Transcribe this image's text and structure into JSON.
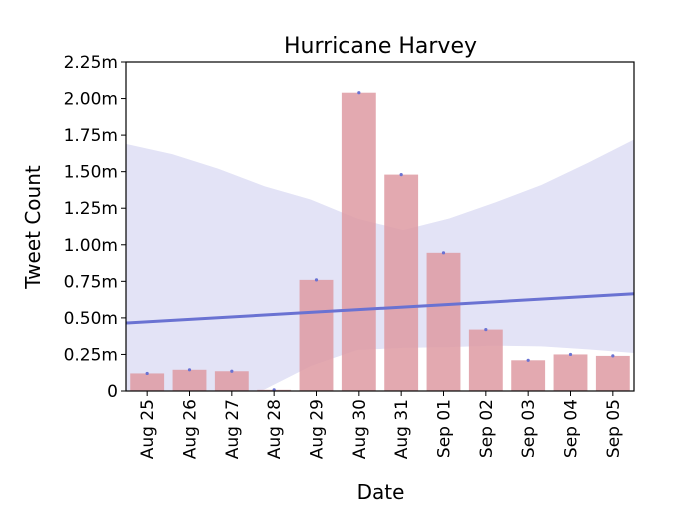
{
  "chart_data": {
    "type": "bar",
    "title": "Hurricane Harvey",
    "xlabel": "Date",
    "ylabel": "Tweet Count",
    "ylim": [
      0,
      2250000
    ],
    "yticks": [
      {
        "value": 0,
        "label": "0"
      },
      {
        "value": 250000,
        "label": "0.25m"
      },
      {
        "value": 500000,
        "label": "0.50m"
      },
      {
        "value": 750000,
        "label": "0.75m"
      },
      {
        "value": 1000000,
        "label": "1.00m"
      },
      {
        "value": 1250000,
        "label": "1.25m"
      },
      {
        "value": 1500000,
        "label": "1.50m"
      },
      {
        "value": 1750000,
        "label": "1.75m"
      },
      {
        "value": 2000000,
        "label": "2.00m"
      },
      {
        "value": 2250000,
        "label": "2.25m"
      }
    ],
    "categories": [
      "Aug 25",
      "Aug 26",
      "Aug 27",
      "Aug 28",
      "Aug 29",
      "Aug 30",
      "Aug 31",
      "Sep 01",
      "Sep 02",
      "Sep 03",
      "Sep 04",
      "Sep 05"
    ],
    "values": [
      120000,
      145000,
      135000,
      8000,
      760000,
      2040000,
      1480000,
      945000,
      420000,
      210000,
      250000,
      240000
    ],
    "trend_line": {
      "start": 465000,
      "end": 665000,
      "band_upper": [
        1690000,
        1620000,
        1520000,
        1400000,
        1310000,
        1180000,
        1100000,
        1180000,
        1290000,
        1410000,
        1560000,
        1720000
      ],
      "band_lower": [
        -250000,
        -180000,
        -100000,
        10000,
        170000,
        280000,
        295000,
        300000,
        310000,
        305000,
        285000,
        260000
      ]
    },
    "grid": false,
    "legend": "none",
    "colors": {
      "bar": "#de9aa2",
      "trend": "#6a72d2",
      "band": "#e3e3f6",
      "marker": "#6a72d2"
    }
  }
}
